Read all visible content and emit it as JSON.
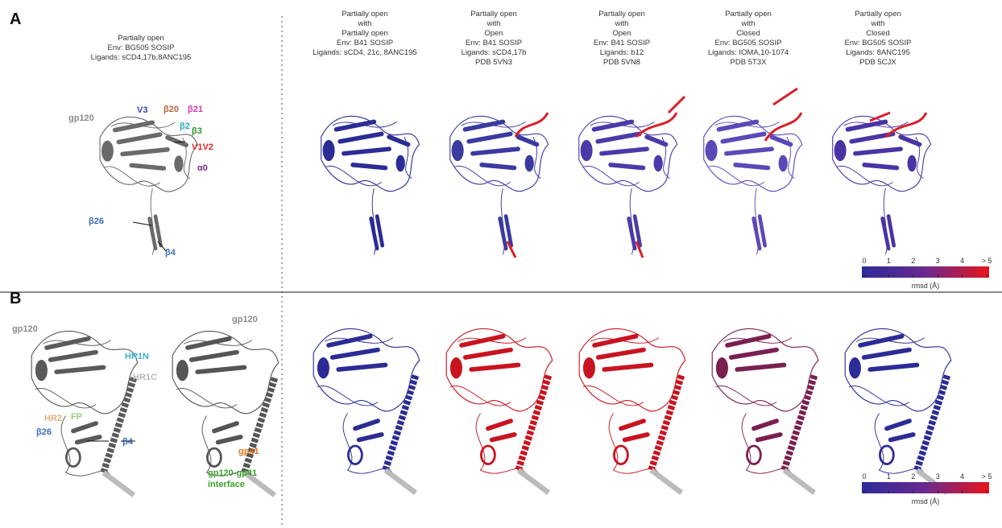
{
  "panels": [
    {
      "label": "A",
      "reference": {
        "lines": [
          "Partially open",
          "Env: BG505 SOSIP",
          "Ligands: sCD4,17b,8ANC195"
        ],
        "labels": [
          {
            "text": "V3",
            "color": "#3b3bb0"
          },
          {
            "text": "β20",
            "color": "#b5653a"
          },
          {
            "text": "β21",
            "color": "#d23fb0"
          },
          {
            "text": "gp120",
            "color": "#8a8a8a"
          },
          {
            "text": "β2",
            "color": "#22a9b8"
          },
          {
            "text": "β3",
            "color": "#2f8f2f"
          },
          {
            "text": "V1V2",
            "color": "#e0262b"
          },
          {
            "text": "α0",
            "color": "#7a2a8a"
          },
          {
            "text": "β26",
            "color": "#3a6ec0"
          },
          {
            "text": "β4",
            "color": "#3a6ec0"
          }
        ]
      },
      "comparisons": [
        {
          "lines": [
            "Partially open",
            "with",
            "Partially open",
            "Env: B41 SOSIP",
            "Ligands: sCD4, 21c, 8ANC195"
          ]
        },
        {
          "lines": [
            "Partially open",
            "with",
            "Open",
            "Env: B41 SOSIP",
            "Ligands: sCD4,17b",
            "PDB 5VN3"
          ]
        },
        {
          "lines": [
            "Partially open",
            "with",
            "Open",
            "Env: B41 SOSIP",
            "Ligands: b12",
            "PDB 5VN8"
          ]
        },
        {
          "lines": [
            "Partially open",
            "with",
            "Closed",
            "Env: BG505 SOSIP",
            "Ligands: IOMA,10-1074",
            "PDB 5T3X"
          ]
        },
        {
          "lines": [
            "Partially open",
            "with",
            "Closed",
            "Env: BG505 SOSIP",
            "Ligands: 8ANC195",
            "PDB 5CJX"
          ]
        }
      ],
      "colorbar": {
        "ticks": [
          "0",
          "1",
          "2",
          "3",
          "4",
          "> 5"
        ],
        "title": "rmsd (Å)"
      }
    },
    {
      "label": "B",
      "reference": {
        "labels": [
          {
            "text": "gp120",
            "color": "#8a8a8a"
          },
          {
            "text": "HR1N",
            "color": "#3ab0d0"
          },
          {
            "text": "HR1C",
            "color": "#b8b8b8"
          },
          {
            "text": "FP",
            "color": "#9ad07a"
          },
          {
            "text": "HR2",
            "color": "#e0b07a"
          },
          {
            "text": "β26",
            "color": "#3a6ec0"
          },
          {
            "text": "β4",
            "color": "#3a6ec0"
          },
          {
            "text": "gp120",
            "color": "#8a8a8a"
          },
          {
            "text": "gp41",
            "color": "#e8731a"
          },
          {
            "text": "gp120-gp41",
            "color": "#3aa02a"
          },
          {
            "text": "interface",
            "color": "#3aa02a"
          }
        ]
      },
      "colorbar": {
        "ticks": [
          "0",
          "1",
          "2",
          "3",
          "4",
          "> 5"
        ],
        "title": "rmsd (Å)"
      }
    }
  ]
}
